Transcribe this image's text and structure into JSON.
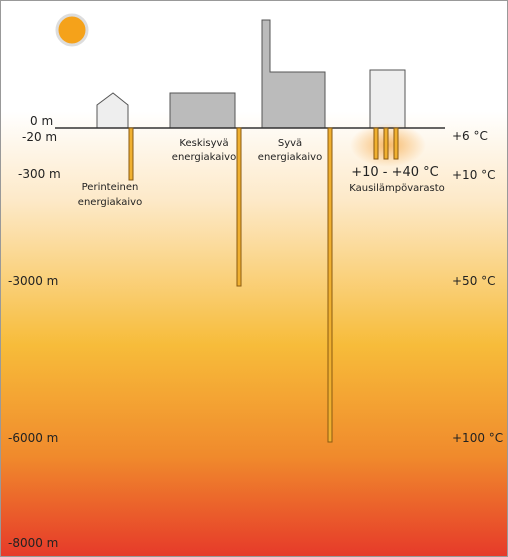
{
  "depths": [
    "0 m",
    "-20 m",
    "-300 m",
    "-3000 m",
    "-6000 m",
    "-8000 m"
  ],
  "temperatures": [
    "+6 °C",
    "+10 °C",
    "+50 °C",
    "+100 °C"
  ],
  "wells": [
    {
      "label": [
        "Perinteinen",
        "energiakaivo"
      ]
    },
    {
      "label": [
        "Keskisyvä",
        "energiakaivo"
      ]
    },
    {
      "label": [
        "Syvä",
        "energiakaivo"
      ]
    }
  ],
  "storage": {
    "temperature": "+10 - +40 °C",
    "label": "Kausilämpövarasto"
  }
}
